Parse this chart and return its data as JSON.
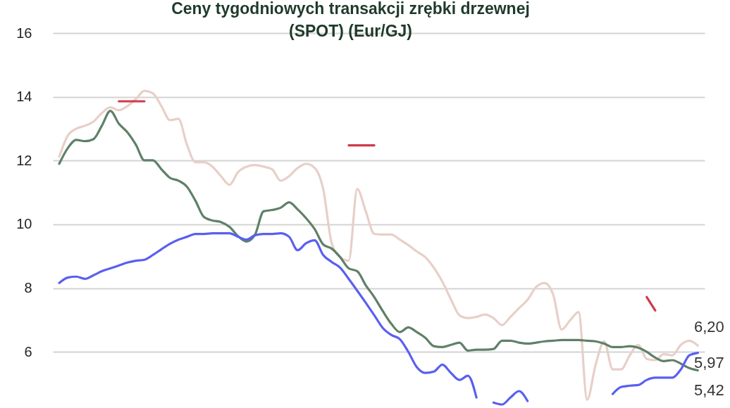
{
  "chart_data": {
    "type": "line",
    "title": "Ceny tygodniowych transakcji zrębki drzewnej\n(SPOT) (Eur/GJ)",
    "categories": [
      null,
      null,
      null,
      null,
      null,
      null,
      null,
      null,
      null,
      null,
      null,
      null,
      null,
      null,
      null,
      null,
      null,
      null,
      null,
      null,
      null,
      null,
      null,
      null,
      null,
      null,
      null,
      null,
      null,
      null,
      null,
      null,
      null,
      null,
      null,
      null,
      null,
      null,
      null,
      null,
      null,
      null,
      null,
      null,
      null,
      null,
      null,
      null,
      null,
      null,
      null,
      null,
      null,
      null,
      null,
      null,
      null,
      null,
      null,
      null,
      null,
      null,
      null,
      null,
      null,
      null,
      null,
      null,
      null,
      null,
      null,
      null,
      null,
      null,
      null,
      null
    ],
    "ylim": [
      4.24,
      16
    ],
    "yticks": [
      6,
      8,
      10,
      12,
      14,
      16
    ],
    "grid": "y",
    "line_style": "solid",
    "series": [
      {
        "color": "#e8cfc8",
        "values": [
          12.12,
          12.78,
          13.0,
          13.09,
          13.22,
          13.49,
          13.67,
          13.58,
          13.71,
          13.93,
          14.19,
          14.11,
          13.71,
          13.27,
          13.31,
          12.5,
          11.95,
          11.95,
          11.81,
          11.51,
          11.24,
          11.64,
          11.81,
          11.86,
          11.81,
          11.73,
          11.37,
          11.51,
          11.77,
          11.9,
          11.77,
          11.11,
          9.41,
          8.97,
          8.86,
          11.11,
          10.41,
          9.7,
          9.68,
          9.68,
          9.52,
          9.35,
          9.15,
          8.97,
          8.64,
          8.2,
          7.65,
          7.15,
          7.06,
          7.1,
          7.17,
          7.06,
          6.84,
          7.1,
          7.37,
          7.63,
          8.03,
          8.16,
          7.81,
          6.7,
          6.99,
          7.25,
          4.5,
          5.6,
          6.33,
          5.45,
          5.45,
          5.89,
          6.22,
          5.78,
          5.74,
          5.93,
          5.89,
          6.22,
          6.35,
          6.2
        ],
        "value_labels": [
          null,
          null,
          null,
          null,
          null,
          null,
          null,
          null,
          null,
          null,
          null,
          null,
          null,
          null,
          null,
          null,
          null,
          null,
          null,
          null,
          null,
          null,
          null,
          null,
          null,
          null,
          null,
          null,
          null,
          null,
          null,
          null,
          null,
          null,
          null,
          null,
          null,
          null,
          null,
          null,
          null,
          null,
          null,
          null,
          null,
          null,
          null,
          null,
          null,
          null,
          null,
          null,
          null,
          null,
          null,
          null,
          null,
          null,
          null,
          null,
          null,
          null,
          null,
          null,
          null,
          null,
          null,
          null,
          null,
          null,
          null,
          null,
          null,
          null,
          null,
          "6,20"
        ]
      },
      {
        "color": "#5f8068",
        "values": [
          11.9,
          12.39,
          12.65,
          12.61,
          12.67,
          13.09,
          13.56,
          13.16,
          12.89,
          12.5,
          12.01,
          12.01,
          11.73,
          11.46,
          11.37,
          11.18,
          10.74,
          10.23,
          10.12,
          10.07,
          9.92,
          9.63,
          9.46,
          9.68,
          10.41,
          10.45,
          10.52,
          10.69,
          10.47,
          10.19,
          9.85,
          9.37,
          9.24,
          8.97,
          8.62,
          8.53,
          8.09,
          7.72,
          7.28,
          6.88,
          6.62,
          6.77,
          6.62,
          6.44,
          6.18,
          6.15,
          6.22,
          6.29,
          6.04,
          6.07,
          6.07,
          6.09,
          6.35,
          6.35,
          6.29,
          6.26,
          6.29,
          6.33,
          6.35,
          6.37,
          6.37,
          6.37,
          6.35,
          6.33,
          6.26,
          6.15,
          6.15,
          6.18,
          6.13,
          6.0,
          5.82,
          5.71,
          5.74,
          5.63,
          5.49,
          5.42
        ],
        "value_labels": [
          null,
          null,
          null,
          null,
          null,
          null,
          null,
          null,
          null,
          null,
          null,
          null,
          null,
          null,
          null,
          null,
          null,
          null,
          null,
          null,
          null,
          null,
          null,
          null,
          null,
          null,
          null,
          null,
          null,
          null,
          null,
          null,
          null,
          null,
          null,
          null,
          null,
          null,
          null,
          null,
          null,
          null,
          null,
          null,
          null,
          null,
          null,
          null,
          null,
          null,
          null,
          null,
          null,
          null,
          null,
          null,
          null,
          null,
          null,
          null,
          null,
          null,
          null,
          null,
          null,
          null,
          null,
          null,
          null,
          null,
          null,
          null,
          null,
          null,
          null,
          "5,42"
        ]
      },
      {
        "color": "#5a5ff0",
        "values": [
          8.16,
          8.33,
          8.36,
          8.29,
          8.4,
          8.53,
          8.62,
          8.71,
          8.8,
          8.86,
          8.89,
          9.04,
          9.22,
          9.39,
          9.52,
          9.61,
          9.7,
          9.7,
          9.72,
          9.72,
          9.72,
          9.61,
          9.52,
          9.66,
          9.7,
          9.7,
          9.72,
          9.61,
          9.19,
          9.41,
          9.5,
          9.04,
          8.82,
          8.64,
          8.29,
          7.92,
          7.54,
          7.15,
          6.75,
          6.53,
          6.4,
          6.0,
          5.52,
          5.34,
          5.38,
          5.6,
          5.34,
          5.12,
          5.25,
          4.57,
          null,
          4.41,
          4.35,
          4.57,
          4.77,
          4.46,
          null,
          null,
          null,
          null,
          null,
          null,
          null,
          null,
          null,
          4.68,
          4.9,
          4.94,
          4.96,
          5.12,
          5.19,
          5.19,
          5.19,
          5.45,
          5.89,
          5.97
        ],
        "value_labels": [
          null,
          null,
          null,
          null,
          null,
          null,
          null,
          null,
          null,
          null,
          null,
          null,
          null,
          null,
          null,
          null,
          null,
          null,
          null,
          null,
          null,
          null,
          null,
          null,
          null,
          null,
          null,
          null,
          null,
          null,
          null,
          null,
          null,
          null,
          null,
          null,
          null,
          null,
          null,
          null,
          null,
          null,
          null,
          null,
          null,
          null,
          null,
          null,
          null,
          null,
          null,
          null,
          null,
          null,
          null,
          null,
          null,
          null,
          null,
          null,
          null,
          null,
          null,
          null,
          null,
          null,
          null,
          null,
          null,
          null,
          null,
          null,
          null,
          null,
          null,
          "5,97"
        ]
      },
      {
        "color": "#d03a4a",
        "values": [
          null,
          null,
          null,
          null,
          null,
          null,
          null,
          13.86,
          13.86,
          13.86,
          13.86,
          null,
          null,
          null,
          null,
          null,
          null,
          null,
          null,
          null,
          null,
          null,
          null,
          null,
          null,
          null,
          null,
          null,
          null,
          null,
          null,
          null,
          null,
          null,
          12.48,
          12.48,
          12.48,
          12.48,
          null,
          null,
          null,
          null,
          null,
          null,
          null,
          null,
          null,
          null,
          null,
          null,
          null,
          null,
          null,
          null,
          null,
          null,
          null,
          null,
          null,
          null,
          null,
          null,
          null,
          null,
          null,
          null,
          null,
          null,
          null,
          7.72,
          7.3,
          null,
          null,
          null,
          null,
          null
        ]
      }
    ]
  }
}
